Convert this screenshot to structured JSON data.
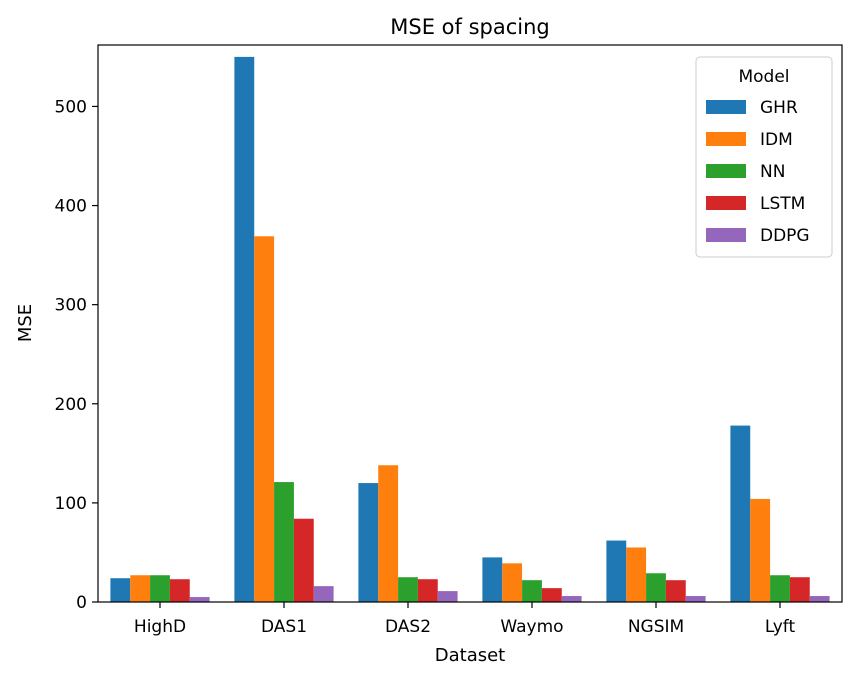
{
  "chart_data": {
    "type": "bar",
    "title": "MSE of spacing",
    "xlabel": "Dataset",
    "ylabel": "MSE",
    "ylim": [
      0,
      562
    ],
    "yticks": [
      0,
      100,
      200,
      300,
      400,
      500
    ],
    "categories": [
      "HighD",
      "DAS1",
      "DAS2",
      "Waymo",
      "NGSIM",
      "Lyft"
    ],
    "legend_title": "Model",
    "legend_position": "top-right",
    "grid": false,
    "series": [
      {
        "name": "GHR",
        "color": "#1f77b4",
        "values": [
          24,
          550,
          120,
          45,
          62,
          178
        ]
      },
      {
        "name": "IDM",
        "color": "#ff7f0e",
        "values": [
          27,
          369,
          138,
          39,
          55,
          104
        ]
      },
      {
        "name": "NN",
        "color": "#2ca02c",
        "values": [
          27,
          121,
          25,
          22,
          29,
          27
        ]
      },
      {
        "name": "LSTM",
        "color": "#d62728",
        "values": [
          23,
          84,
          23,
          14,
          22,
          25
        ]
      },
      {
        "name": "DDPG",
        "color": "#9467bd",
        "values": [
          5,
          16,
          11,
          6,
          6,
          6
        ]
      }
    ]
  }
}
